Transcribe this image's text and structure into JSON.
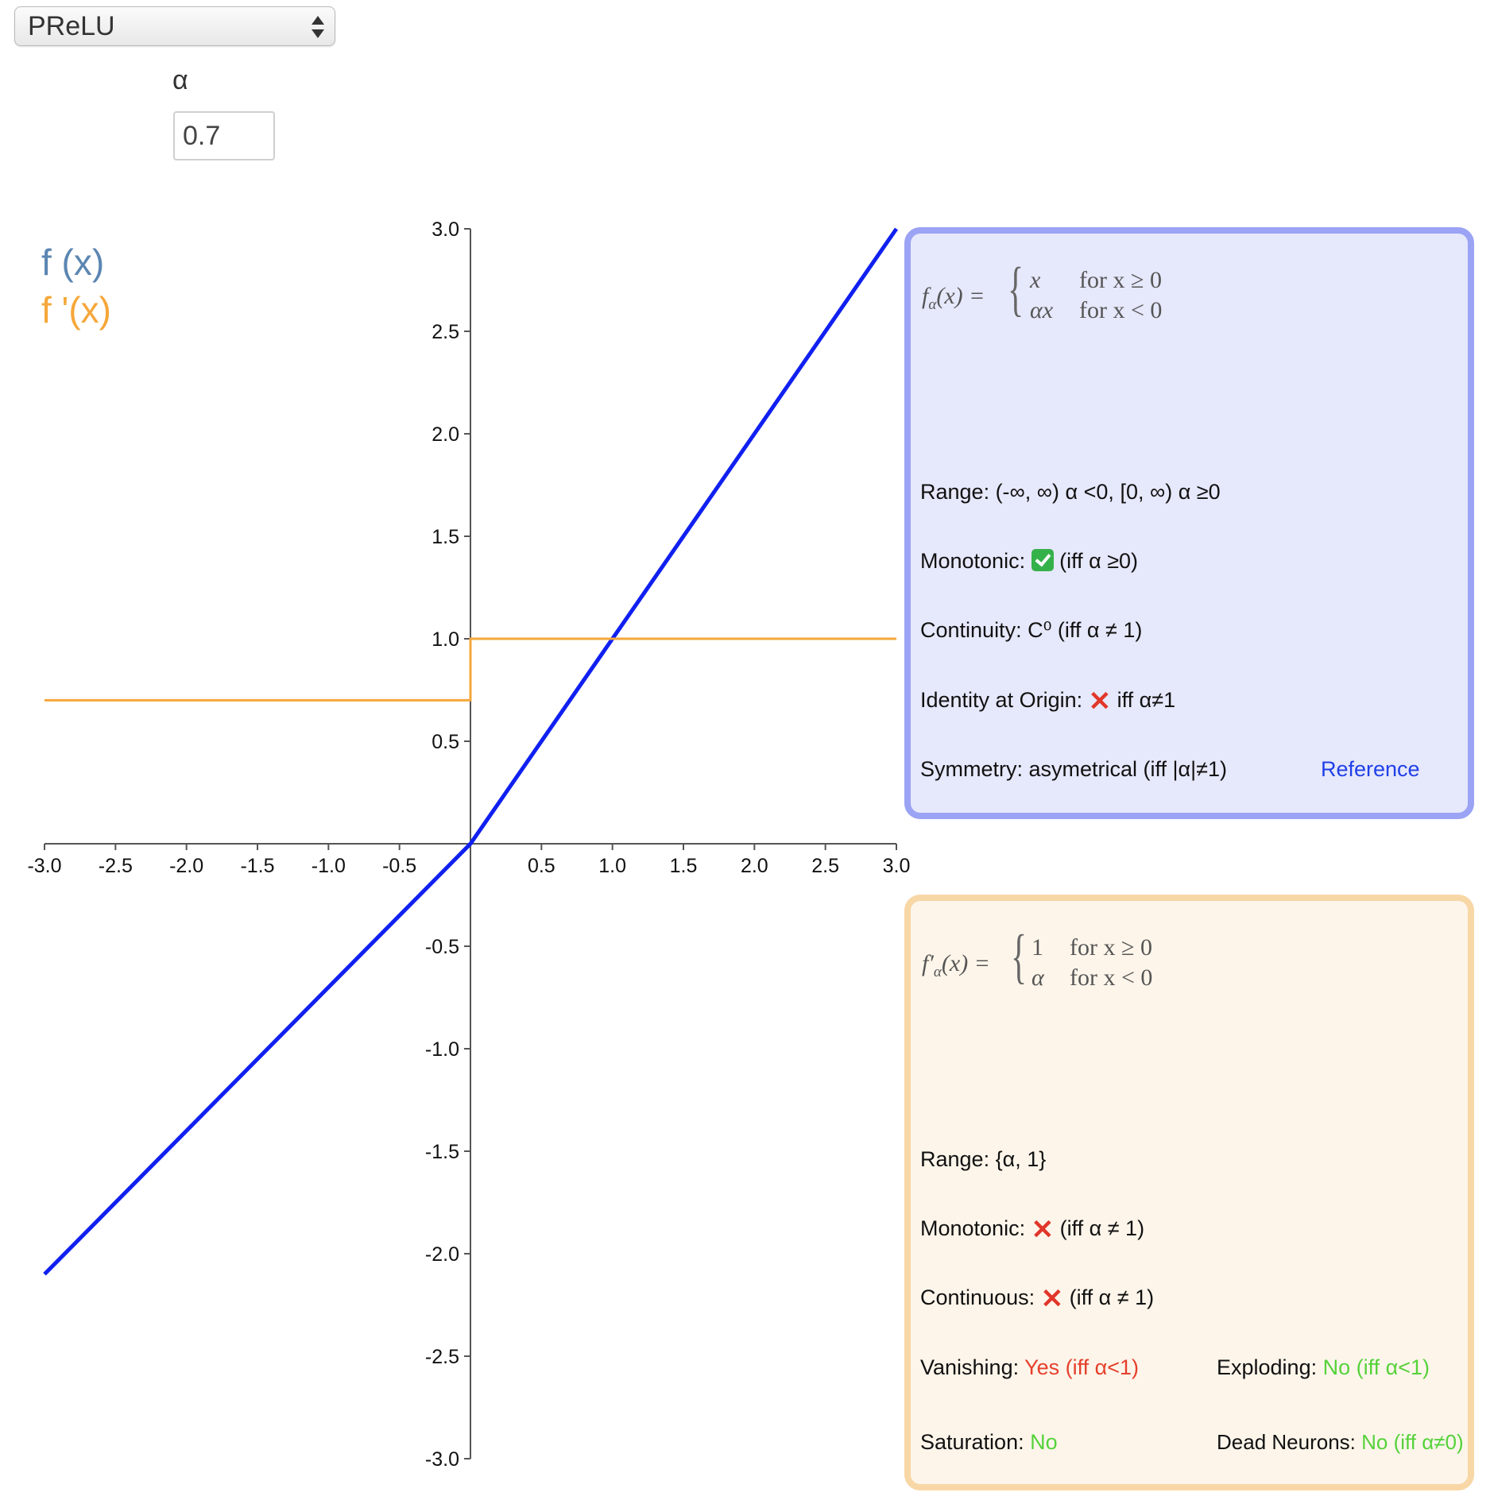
{
  "dropdown": {
    "selected": "PReLU"
  },
  "alpha": {
    "label": "α",
    "value": "0.7"
  },
  "legend": {
    "f": "f (x)",
    "fprime": "f '(x)"
  },
  "colors": {
    "f_line": "#1020f0",
    "fprime_line": "#f5a73a",
    "f_label": "#5b86b2",
    "fprime_label": "#f5a73a"
  },
  "function_card": {
    "lhs": "f",
    "lhs_sub": "α",
    "lhs_rest": "(x) =",
    "case1_expr": "x",
    "case1_cond": "for x ≥ 0",
    "case2_expr": "αx",
    "case2_cond": "for x < 0",
    "range": "Range: (-∞, ∞) α <0, [0, ∞) α ≥0",
    "monotonic_label": "Monotonic:",
    "monotonic_icon": "check-icon",
    "monotonic_note": "(iff α ≥0)",
    "continuity": "Continuity: C⁰ (iff α ≠ 1)",
    "identity_label": "Identity at Origin:",
    "identity_icon": "cross-icon",
    "identity_note": "iff α≠1",
    "symmetry": "Symmetry: asymetrical (iff |α|≠1)",
    "reference": "Reference"
  },
  "derivative_card": {
    "lhs": "f′",
    "lhs_sub": "α",
    "lhs_rest": "(x) =",
    "case1_expr": "1",
    "case1_cond": "for x ≥ 0",
    "case2_expr": "α",
    "case2_cond": "for x < 0",
    "range": "Range: {α, 1}",
    "monotonic_label": "Monotonic:",
    "monotonic_note": "(iff α ≠ 1)",
    "continuous_label": "Continuous:",
    "continuous_note": "(iff α ≠ 1)",
    "vanishing_label": "Vanishing:",
    "vanishing_value": "Yes (iff α<1)",
    "exploding_label": "Exploding:",
    "exploding_value": "No (iff α<1)",
    "saturation_label": "Saturation:",
    "saturation_value": "No",
    "dead_label": "Dead Neurons:",
    "dead_value": "No (iff α≠0)"
  },
  "chart_data": {
    "type": "line",
    "xlim": [
      -3.0,
      3.0
    ],
    "ylim": [
      -3.0,
      3.0
    ],
    "x_ticks": [
      "-3.0",
      "-2.5",
      "-2.0",
      "-1.5",
      "-1.0",
      "-0.5",
      "0.5",
      "1.0",
      "1.5",
      "2.0",
      "2.5",
      "3.0"
    ],
    "y_ticks": [
      "3.0",
      "2.5",
      "2.0",
      "1.5",
      "1.0",
      "0.5",
      "-0.5",
      "-1.0",
      "-1.5",
      "-2.0",
      "-2.5",
      "-3.0"
    ],
    "series": [
      {
        "name": "f (x)",
        "x": [
          -3.0,
          0.0,
          3.0
        ],
        "y": [
          -2.1,
          0.0,
          3.0
        ]
      },
      {
        "name": "f '(x)",
        "x": [
          -3.0,
          0.0,
          0.0,
          3.0
        ],
        "y": [
          0.7,
          0.7,
          1.0,
          1.0
        ]
      }
    ]
  }
}
